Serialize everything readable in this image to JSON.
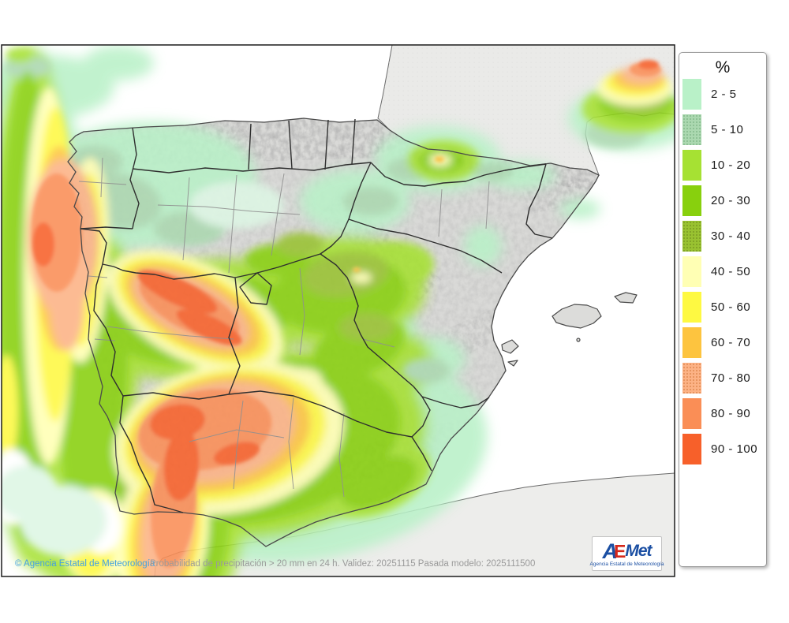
{
  "legend": {
    "title": "%",
    "entries": [
      {
        "label": "2 - 5",
        "color": "#b9f1c8",
        "dot": null
      },
      {
        "label": "5 - 10",
        "color": "#abd8b0",
        "dot": "#84b98c"
      },
      {
        "label": "10 - 20",
        "color": "#a6e133",
        "dot": null
      },
      {
        "label": "20 - 30",
        "color": "#88d00d",
        "dot": null
      },
      {
        "label": "30 - 40",
        "color": "#99c231",
        "dot": "#7a9a22"
      },
      {
        "label": "40 - 50",
        "color": "#ffffb4",
        "dot": null
      },
      {
        "label": "50 - 60",
        "color": "#fef942",
        "dot": null
      },
      {
        "label": "60 - 70",
        "color": "#fdc43f",
        "dot": null
      },
      {
        "label": "70 - 80",
        "color": "#fcb285",
        "dot": "#e08a52"
      },
      {
        "label": "80 - 90",
        "color": "#fa8e56",
        "dot": null
      },
      {
        "label": "90 - 100",
        "color": "#f7602a",
        "dot": null
      }
    ]
  },
  "palette": {
    "p2_5": "#b9f1c8",
    "p5_10": "#abd8b0",
    "p10_20": "#a6e133",
    "p20_30": "#88d00d",
    "p30_40": "#99c231",
    "p40_50": "#ffffb4",
    "p50_60": "#fef942",
    "p60_70": "#fdc43f",
    "p70_80": "#fcb285",
    "p80_90": "#fa8e56",
    "p90_100": "#f7602a",
    "sea": "#ffffff",
    "palemint": "#ddf6e4",
    "spain_land": "#d9d9d7",
    "france_land": "#eaeae8",
    "africa_land": "#ededeb"
  },
  "caption": {
    "attribution": "© Agencia Estatal de Meteorología",
    "attribution_color": "#44a1e0",
    "description": "Probabilidad de precipitación > 20 mm en 24 h. Validez: 20251115 Pasada modelo: 2025111500",
    "description_color": "#9a9a9a"
  },
  "logo": {
    "part_a": "A",
    "part_e": "E",
    "part_met": "Met",
    "subtitle": "Agencia Estatal de Meteorología",
    "blue": "#1b4fa3",
    "red": "#d5281b"
  }
}
